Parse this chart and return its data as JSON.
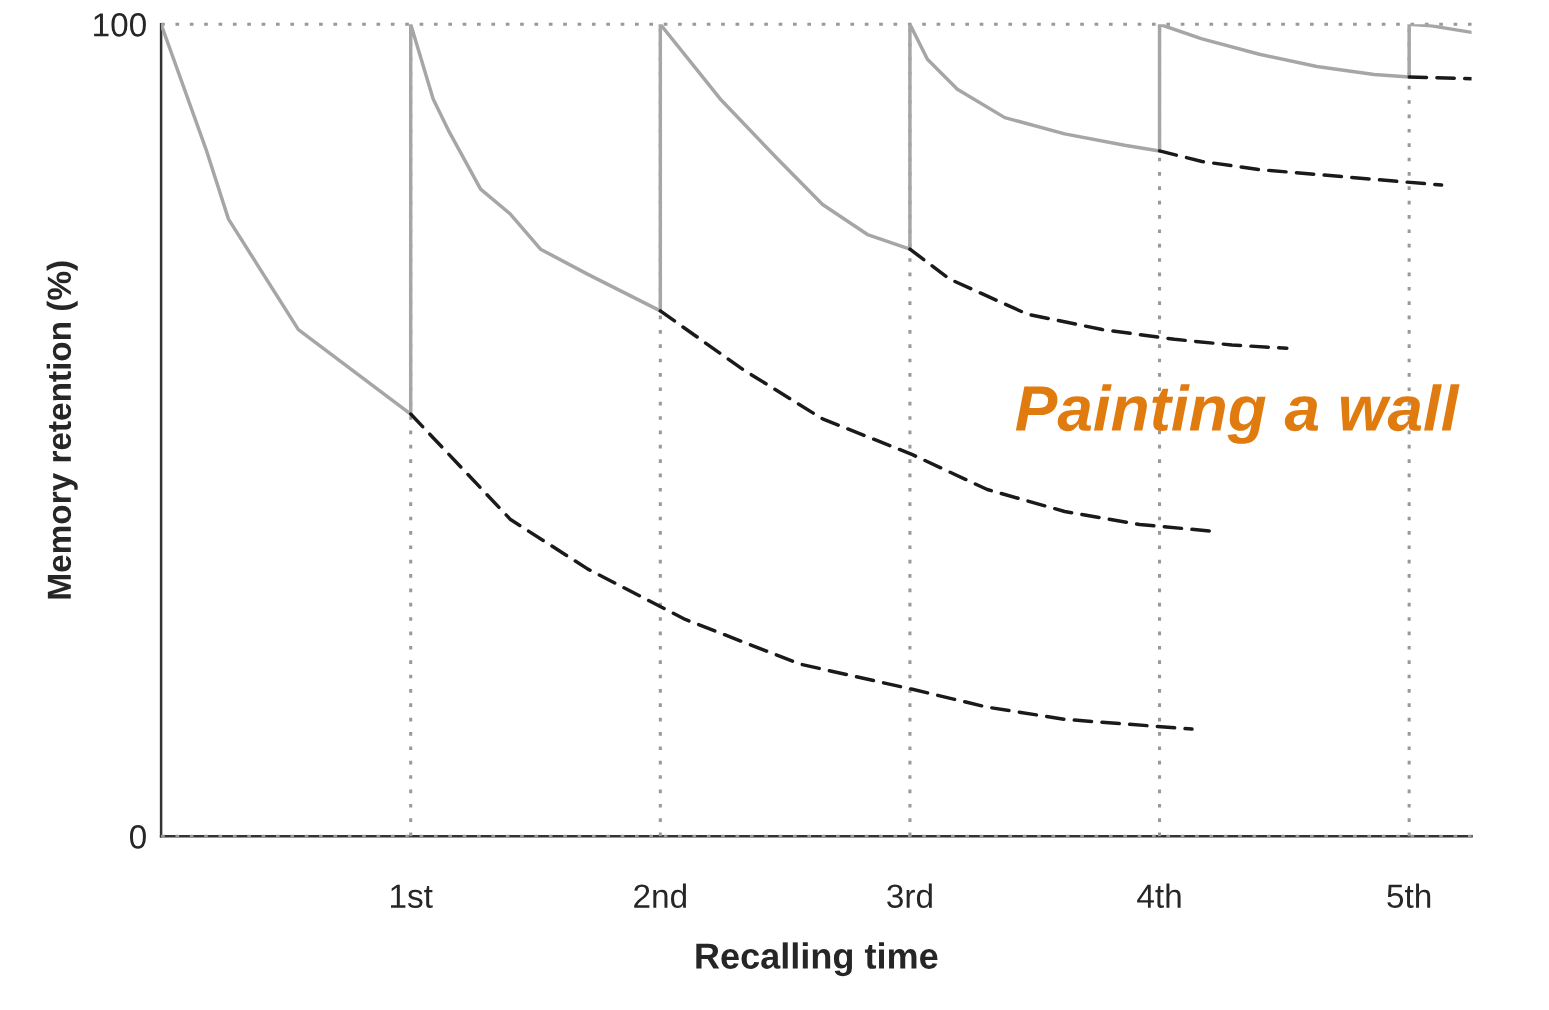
{
  "chart_data": {
    "type": "line",
    "xlabel": "Recalling time",
    "ylabel": "Memory retention (%)",
    "xlim": [
      0,
      5.25
    ],
    "ylim": [
      0,
      100
    ],
    "xticks": [
      {
        "value": 1,
        "label": "1st"
      },
      {
        "value": 2,
        "label": "2nd"
      },
      {
        "value": 3,
        "label": "3rd"
      },
      {
        "value": 4,
        "label": "4th"
      },
      {
        "value": 5,
        "label": "5th"
      }
    ],
    "yticks": [
      0,
      100
    ],
    "grid": true,
    "legend": false,
    "marker": "none",
    "annotations": [
      "Painting a wall"
    ],
    "series": [
      {
        "color": "#a6a6a6",
        "line_style": "solid",
        "x": [
          0,
          0.18,
          0.27,
          0.55,
          1,
          1,
          1.09,
          1.15,
          1.28,
          1.4,
          1.52,
          1.71,
          2,
          2,
          2.24,
          2.47,
          2.65,
          2.83,
          3,
          3,
          3.07,
          3.19,
          3.38,
          3.62,
          3.86,
          4,
          4,
          4.17,
          4.4,
          4.63,
          4.86,
          5,
          5,
          5.09,
          5.25
        ],
        "values": [
          100,
          84.6,
          76,
          62.4,
          52,
          100,
          90.8,
          87,
          79.7,
          76.6,
          72.3,
          69.2,
          64.7,
          100,
          90.8,
          83.4,
          77.8,
          74.1,
          72.3,
          100,
          95.7,
          92,
          88.5,
          86.5,
          85.1,
          84.4,
          100,
          98.2,
          96.3,
          94.8,
          93.8,
          93.5,
          100,
          99.8,
          99.0
        ]
      },
      {
        "color": "#1a1a1a",
        "line_style": "dashed",
        "x": [
          1,
          1.4,
          1.71,
          2.1,
          2.56,
          3.01,
          3.31,
          3.62,
          4.13
        ],
        "values": [
          52,
          39,
          32.9,
          26.7,
          21.2,
          18.1,
          15.9,
          14.4,
          13.2
        ]
      },
      {
        "color": "#1a1a1a",
        "line_style": "dashed",
        "x": [
          2,
          2.33,
          2.65,
          3.01,
          3.31,
          3.62,
          3.92,
          4.2
        ],
        "values": [
          64.7,
          57.5,
          51.4,
          47,
          42.7,
          40,
          38.4,
          37.6
        ]
      },
      {
        "color": "#1a1a1a",
        "line_style": "dashed",
        "x": [
          3,
          3.16,
          3.47,
          3.77,
          4.06,
          4.29,
          4.51
        ],
        "values": [
          72.3,
          68.6,
          64.3,
          62.4,
          61.2,
          60.5,
          60.1
        ]
      },
      {
        "color": "#1a1a1a",
        "line_style": "dashed",
        "x": [
          4,
          4.17,
          4.4,
          4.63,
          4.86,
          5.13
        ],
        "values": [
          84.4,
          83.1,
          82.1,
          81.5,
          80.9,
          80.2
        ]
      },
      {
        "color": "#1a1a1a",
        "line_style": "dashed",
        "x": [
          5,
          5.25
        ],
        "values": [
          93.5,
          93.3
        ]
      }
    ]
  }
}
